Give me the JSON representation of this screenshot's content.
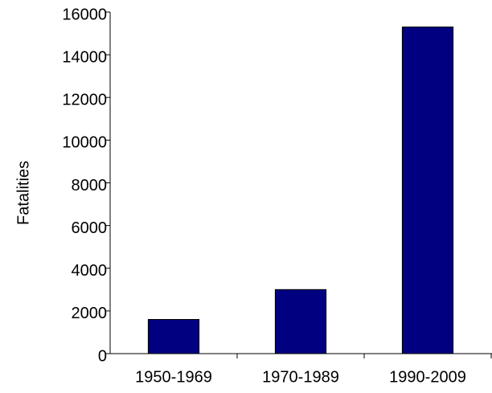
{
  "chart_data": {
    "type": "bar",
    "y_label": "Fatalities",
    "categories": [
      "1950-1969",
      "1970-1989",
      "1990-2009"
    ],
    "values": [
      1600,
      3000,
      15300
    ],
    "color": "#000080",
    "ylim": [
      0,
      16000
    ],
    "yticks": [
      0,
      2000,
      4000,
      6000,
      8000,
      10000,
      12000,
      14000,
      16000
    ],
    "grid": false
  }
}
